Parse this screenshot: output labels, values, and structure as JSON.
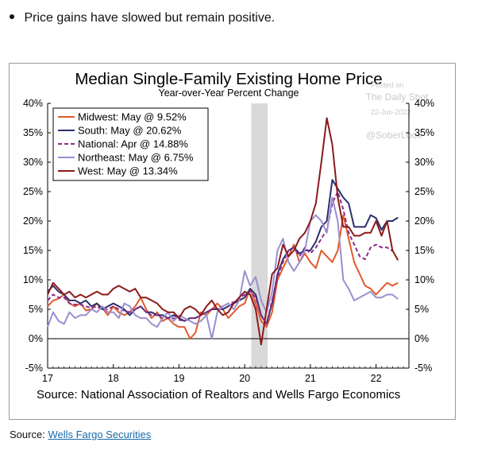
{
  "bullet": {
    "text": "Price gains have slowed but remain positive."
  },
  "footer": {
    "prefix": "Source:",
    "link_text": "Wells Fargo Securities",
    "link_color": "#1a6aa8"
  },
  "watermark": {
    "line1": "Posted on",
    "line2": "The Daily Shot",
    "line3": "22-Jun-2022",
    "line4": "@SoberLook"
  },
  "chart_data": {
    "type": "line",
    "title": "Median Single-Family Existing Home Price",
    "subtitle": "Year-over-Year Percent Change",
    "source": "Source: National Association of Realtors and Wells Fargo Economics",
    "x_ticks": [
      "17",
      "18",
      "19",
      "20",
      "21",
      "22"
    ],
    "y_ticks_left": [
      "40%",
      "35%",
      "30%",
      "25%",
      "20%",
      "15%",
      "10%",
      "5%",
      "0%",
      "-5%"
    ],
    "y_ticks_right": [
      "40%",
      "35%",
      "30%",
      "25%",
      "20%",
      "15%",
      "10%",
      "5%",
      "0%",
      "-5%"
    ],
    "xlim": [
      2017.0,
      2022.5
    ],
    "ylim": [
      -5,
      40
    ],
    "recession_shade": [
      2020.1,
      2020.35
    ],
    "legend_position": "top-left",
    "grid": false,
    "series": [
      {
        "name": "Midwest: May @ 9.52%",
        "color": "#e05a2b",
        "dash": "solid",
        "x": [
          2017.0,
          2017.083,
          2017.167,
          2017.25,
          2017.333,
          2017.417,
          2017.5,
          2017.583,
          2017.667,
          2017.75,
          2017.833,
          2017.917,
          2018.0,
          2018.083,
          2018.167,
          2018.25,
          2018.333,
          2018.417,
          2018.5,
          2018.583,
          2018.667,
          2018.75,
          2018.833,
          2018.917,
          2019.0,
          2019.083,
          2019.167,
          2019.25,
          2019.333,
          2019.417,
          2019.5,
          2019.583,
          2019.667,
          2019.75,
          2019.833,
          2019.917,
          2020.0,
          2020.083,
          2020.167,
          2020.25,
          2020.333,
          2020.417,
          2020.5,
          2020.583,
          2020.667,
          2020.75,
          2020.833,
          2020.917,
          2021.0,
          2021.083,
          2021.167,
          2021.25,
          2021.333,
          2021.417,
          2021.5,
          2021.583,
          2021.667,
          2021.75,
          2021.833,
          2021.917,
          2022.0,
          2022.083,
          2022.167,
          2022.25,
          2022.333
        ],
        "y": [
          5.5,
          6.5,
          6.8,
          7.5,
          6.0,
          5.5,
          6.0,
          4.8,
          5.0,
          6.0,
          5.2,
          4.0,
          5.5,
          4.5,
          4.0,
          4.5,
          5.5,
          7.0,
          5.0,
          3.5,
          4.5,
          3.0,
          3.5,
          2.5,
          2.0,
          2.0,
          0.0,
          1.0,
          4.5,
          4.0,
          5.0,
          6.0,
          5.0,
          3.5,
          4.5,
          5.5,
          6.0,
          8.5,
          6.0,
          3.0,
          2.0,
          4.5,
          10.0,
          12.0,
          14.0,
          16.0,
          13.0,
          14.5,
          13.0,
          12.0,
          15.0,
          14.0,
          13.0,
          15.0,
          21.0,
          17.0,
          13.0,
          11.0,
          9.0,
          8.5,
          7.5,
          8.5,
          9.5,
          9.0,
          9.5
        ]
      },
      {
        "name": "South: May @ 20.62%",
        "color": "#2b2f6e",
        "dash": "solid",
        "x": [
          2017.0,
          2017.083,
          2017.167,
          2017.25,
          2017.333,
          2017.417,
          2017.5,
          2017.583,
          2017.667,
          2017.75,
          2017.833,
          2017.917,
          2018.0,
          2018.083,
          2018.167,
          2018.25,
          2018.333,
          2018.417,
          2018.5,
          2018.583,
          2018.667,
          2018.75,
          2018.833,
          2018.917,
          2019.0,
          2019.083,
          2019.167,
          2019.25,
          2019.333,
          2019.417,
          2019.5,
          2019.583,
          2019.667,
          2019.75,
          2019.833,
          2019.917,
          2020.0,
          2020.083,
          2020.167,
          2020.25,
          2020.333,
          2020.417,
          2020.5,
          2020.583,
          2020.667,
          2020.75,
          2020.833,
          2020.917,
          2021.0,
          2021.083,
          2021.167,
          2021.25,
          2021.333,
          2021.417,
          2021.5,
          2021.583,
          2021.667,
          2021.75,
          2021.833,
          2021.917,
          2022.0,
          2022.083,
          2022.167,
          2022.25,
          2022.333
        ],
        "y": [
          8.0,
          9.0,
          8.0,
          7.5,
          6.5,
          6.5,
          6.0,
          6.5,
          5.5,
          6.0,
          5.0,
          5.5,
          6.0,
          5.5,
          5.0,
          4.0,
          5.0,
          5.5,
          4.5,
          4.5,
          4.0,
          4.0,
          3.5,
          4.0,
          3.5,
          3.0,
          3.5,
          3.5,
          4.0,
          4.5,
          5.0,
          5.0,
          5.0,
          5.5,
          6.0,
          6.5,
          7.0,
          8.5,
          7.5,
          4.0,
          2.5,
          6.0,
          11.0,
          13.5,
          15.0,
          15.5,
          14.5,
          15.0,
          15.0,
          16.5,
          19.0,
          20.0,
          27.0,
          25.5,
          24.0,
          23.0,
          19.0,
          19.0,
          19.0,
          21.0,
          20.5,
          18.5,
          20.0,
          20.0,
          20.6
        ]
      },
      {
        "name": "National: Apr @ 14.88%",
        "color": "#8e2c8c",
        "dash": "dashed",
        "x": [
          2017.0,
          2017.083,
          2017.167,
          2017.25,
          2017.333,
          2017.417,
          2017.5,
          2017.583,
          2017.667,
          2017.75,
          2017.833,
          2017.917,
          2018.0,
          2018.083,
          2018.167,
          2018.25,
          2018.333,
          2018.417,
          2018.5,
          2018.583,
          2018.667,
          2018.75,
          2018.833,
          2018.917,
          2019.0,
          2019.083,
          2019.167,
          2019.25,
          2019.333,
          2019.417,
          2019.5,
          2019.583,
          2019.667,
          2019.75,
          2019.833,
          2019.917,
          2020.0,
          2020.083,
          2020.167,
          2020.25,
          2020.333,
          2020.417,
          2020.5,
          2020.583,
          2020.667,
          2020.75,
          2020.833,
          2020.917,
          2021.0,
          2021.083,
          2021.167,
          2021.25,
          2021.333,
          2021.417,
          2021.5,
          2021.583,
          2021.667,
          2021.75,
          2021.833,
          2021.917,
          2022.0,
          2022.083,
          2022.167,
          2022.25
        ],
        "y": [
          6.5,
          7.5,
          7.0,
          7.0,
          6.0,
          5.8,
          5.8,
          5.5,
          5.2,
          5.5,
          5.0,
          5.0,
          5.5,
          5.0,
          4.8,
          4.5,
          5.0,
          5.5,
          4.5,
          4.0,
          4.0,
          3.5,
          3.5,
          3.5,
          3.2,
          3.0,
          3.5,
          3.5,
          4.0,
          4.5,
          5.0,
          5.2,
          5.5,
          6.0,
          6.2,
          6.8,
          7.5,
          8.0,
          7.0,
          4.0,
          2.5,
          6.5,
          10.5,
          13.0,
          15.0,
          15.5,
          14.0,
          15.5,
          14.5,
          15.5,
          17.0,
          18.5,
          23.0,
          25.0,
          22.0,
          18.0,
          16.0,
          14.0,
          13.5,
          15.5,
          16.0,
          15.5,
          15.5,
          14.9
        ]
      },
      {
        "name": "Northeast: May @ 6.75%",
        "color": "#9a8fd0",
        "dash": "solid",
        "x": [
          2017.0,
          2017.083,
          2017.167,
          2017.25,
          2017.333,
          2017.417,
          2017.5,
          2017.583,
          2017.667,
          2017.75,
          2017.833,
          2017.917,
          2018.0,
          2018.083,
          2018.167,
          2018.25,
          2018.333,
          2018.417,
          2018.5,
          2018.583,
          2018.667,
          2018.75,
          2018.833,
          2018.917,
          2019.0,
          2019.083,
          2019.167,
          2019.25,
          2019.333,
          2019.417,
          2019.5,
          2019.583,
          2019.667,
          2019.75,
          2019.833,
          2019.917,
          2020.0,
          2020.083,
          2020.167,
          2020.25,
          2020.333,
          2020.417,
          2020.5,
          2020.583,
          2020.667,
          2020.75,
          2020.833,
          2020.917,
          2021.0,
          2021.083,
          2021.167,
          2021.25,
          2021.333,
          2021.417,
          2021.5,
          2021.583,
          2021.667,
          2021.75,
          2021.833,
          2021.917,
          2022.0,
          2022.083,
          2022.167,
          2022.25,
          2022.333
        ],
        "y": [
          2.0,
          4.5,
          3.0,
          2.5,
          4.5,
          3.5,
          4.0,
          4.0,
          5.0,
          4.5,
          5.5,
          4.5,
          4.5,
          3.5,
          6.0,
          5.5,
          4.0,
          3.5,
          3.5,
          2.5,
          2.0,
          3.5,
          4.5,
          3.0,
          4.0,
          3.5,
          3.0,
          2.5,
          3.0,
          4.0,
          0.0,
          4.5,
          5.5,
          6.0,
          5.0,
          6.5,
          11.5,
          9.0,
          10.5,
          6.5,
          4.5,
          8.0,
          15.0,
          17.0,
          13.0,
          11.5,
          13.0,
          15.0,
          20.0,
          21.0,
          20.0,
          18.0,
          24.0,
          20.0,
          10.0,
          8.5,
          6.5,
          7.0,
          7.5,
          8.0,
          7.0,
          7.0,
          7.5,
          7.5,
          6.75
        ]
      },
      {
        "name": "West: May @ 13.34%",
        "color": "#8b1a1a",
        "dash": "solid",
        "x": [
          2017.0,
          2017.083,
          2017.167,
          2017.25,
          2017.333,
          2017.417,
          2017.5,
          2017.583,
          2017.667,
          2017.75,
          2017.833,
          2017.917,
          2018.0,
          2018.083,
          2018.167,
          2018.25,
          2018.333,
          2018.417,
          2018.5,
          2018.583,
          2018.667,
          2018.75,
          2018.833,
          2018.917,
          2019.0,
          2019.083,
          2019.167,
          2019.25,
          2019.333,
          2019.417,
          2019.5,
          2019.583,
          2019.667,
          2019.75,
          2019.833,
          2019.917,
          2020.0,
          2020.083,
          2020.167,
          2020.25,
          2020.333,
          2020.417,
          2020.5,
          2020.583,
          2020.667,
          2020.75,
          2020.833,
          2020.917,
          2021.0,
          2021.083,
          2021.167,
          2021.25,
          2021.333,
          2021.417,
          2021.5,
          2021.583,
          2021.667,
          2021.75,
          2021.833,
          2021.917,
          2022.0,
          2022.083,
          2022.167,
          2022.25,
          2022.333
        ],
        "y": [
          7.5,
          9.5,
          8.5,
          7.5,
          8.0,
          7.0,
          7.5,
          7.0,
          7.5,
          8.0,
          7.5,
          7.5,
          8.5,
          9.0,
          8.5,
          8.0,
          8.5,
          7.0,
          7.0,
          6.5,
          6.0,
          5.0,
          4.5,
          4.5,
          3.5,
          5.0,
          5.5,
          5.0,
          4.0,
          5.5,
          6.5,
          5.0,
          4.0,
          4.5,
          6.0,
          7.0,
          8.0,
          7.5,
          5.0,
          -1.0,
          5.0,
          11.0,
          12.0,
          16.0,
          14.0,
          15.0,
          17.0,
          18.0,
          20.0,
          23.0,
          30.0,
          37.5,
          33.0,
          24.0,
          19.0,
          19.0,
          17.5,
          17.5,
          18.0,
          18.0,
          20.0,
          17.5,
          20.0,
          15.0,
          13.34
        ]
      }
    ]
  }
}
